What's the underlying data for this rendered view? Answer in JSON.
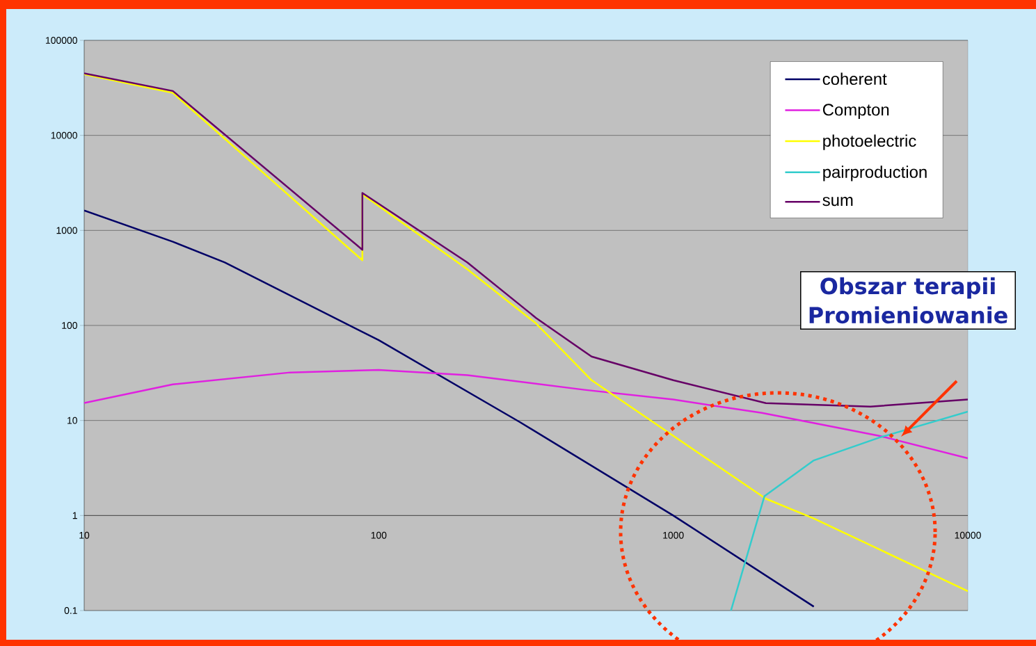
{
  "chart_data": {
    "type": "line",
    "log": "xy",
    "grid": "y",
    "legend": "top right",
    "marker": "none",
    "line_style": "solid",
    "xlim": [
      10,
      10000
    ],
    "ylim": [
      0.1,
      100000
    ],
    "xticks": [
      10,
      100,
      1000,
      10000
    ],
    "yticks": [
      0.1,
      1,
      10,
      100,
      1000,
      10000,
      100000
    ],
    "annotations": [
      "Obszar terapii",
      "Promieniowanie"
    ],
    "series": [
      {
        "name": "coherent",
        "color": "#000066",
        "x": [
          10,
          20,
          30,
          100,
          300,
          1000,
          3000
        ],
        "values": [
          1620,
          760,
          460,
          70,
          9.7,
          1.0,
          0.11
        ]
      },
      {
        "name": "Compton",
        "color": "#e020e0",
        "x": [
          10,
          20,
          50,
          100,
          200,
          500,
          1000,
          2000,
          5000,
          10000
        ],
        "values": [
          15.3,
          24,
          32,
          34,
          30,
          21,
          16.6,
          12,
          6.9,
          4.0
        ]
      },
      {
        "name": "photoelectric",
        "color": "#ffff00",
        "x": [
          10,
          20,
          88,
          88,
          200,
          342,
          528,
          1000,
          2063,
          3000,
          10000
        ],
        "values": [
          44000,
          28000,
          485,
          2400,
          390,
          105,
          26.5,
          6.9,
          1.5,
          0.93,
          0.16
        ]
      },
      {
        "name": "pairproduction",
        "color": "#33cccc",
        "x": [
          1570,
          2040,
          3000,
          5000,
          10000
        ],
        "values": [
          0.1,
          1.6,
          3.8,
          6.6,
          12.4
        ]
      },
      {
        "name": "sum",
        "color": "#660066",
        "x": [
          10,
          20,
          88,
          88,
          200,
          342,
          528,
          1000,
          2063,
          4670,
          10000
        ],
        "values": [
          45000,
          29300,
          625,
          2480,
          460,
          120,
          47,
          26.5,
          15.2,
          14.0,
          16.6
        ]
      }
    ]
  }
}
